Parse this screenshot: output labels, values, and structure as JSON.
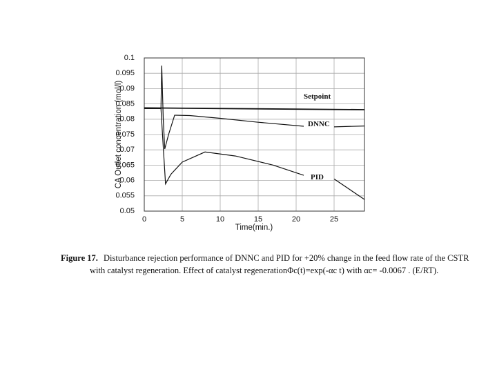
{
  "chart_data": {
    "type": "line",
    "y_label": "CA Outlet concentration (mol/l)",
    "x_label": "Time(min.)",
    "caption_label": "Figure 17.",
    "caption": [
      "Disturbance rejection performance of DNNC and PID for +20% change in the feed flow rate of the CSTR",
      "with catalyst regeneration. Effect of catalyst regenerationΦc(t)=exp(-αc t) with αc= -0.0067 . (E/RT)."
    ],
    "xlim": [
      0,
      29
    ],
    "xticks": [
      0,
      5,
      10,
      15,
      20,
      25
    ],
    "ylim": [
      0.05,
      0.1
    ],
    "yticks": [
      0.05,
      0.055,
      0.06,
      0.065,
      0.07,
      0.075,
      0.08,
      0.085,
      0.09,
      0.095,
      0.1
    ],
    "grid": true,
    "series": [
      {
        "name": "Setpoint",
        "color": "#111111",
        "x": [
          0,
          29
        ],
        "values": [
          0.0837,
          0.0831
        ]
      },
      {
        "name": "DNNC",
        "color": "#111111",
        "x": [
          0,
          2.2,
          2.3,
          2.5,
          2.7,
          3.2,
          4,
          6,
          10,
          15,
          21,
          23,
          25,
          29
        ],
        "values": [
          0.0835,
          0.0835,
          0.0975,
          0.08,
          0.0703,
          0.075,
          0.0813,
          0.0812,
          0.0803,
          0.079,
          0.0777,
          null,
          0.0775,
          0.0778
        ]
      },
      {
        "name": "PID",
        "color": "#111111",
        "x": [
          0,
          2.2,
          2.4,
          2.8,
          3.5,
          5,
          8,
          12,
          17,
          21,
          23,
          25,
          29
        ],
        "values": [
          0.0835,
          0.0835,
          0.075,
          0.0589,
          0.062,
          0.066,
          0.0693,
          0.068,
          0.065,
          0.0617,
          null,
          0.0605,
          0.0538
        ]
      }
    ]
  }
}
